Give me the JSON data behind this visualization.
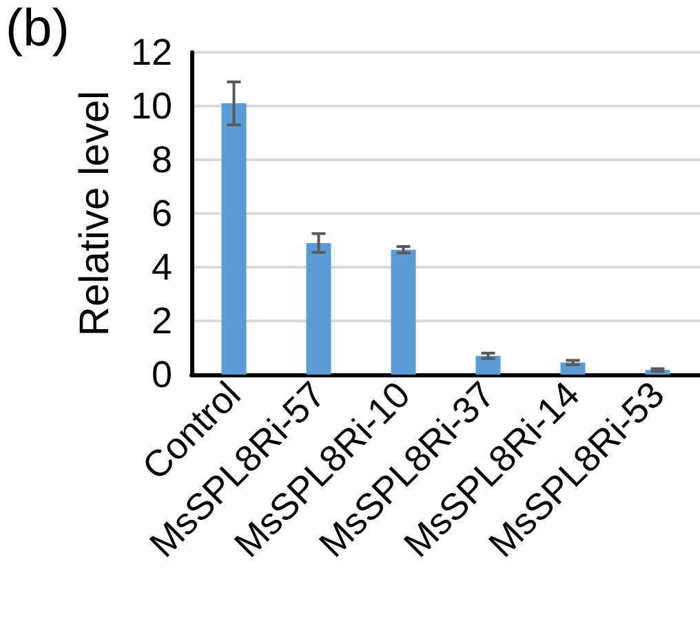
{
  "chart_data": {
    "type": "bar",
    "ylabel": "Relative level",
    "annotations": [
      "(b)"
    ],
    "categories": [
      "Control",
      "MsSPL8Ri-57",
      "MsSPL8Ri-10",
      "MsSPL8Ri-37",
      "MsSPL8Ri-14",
      "MsSPL8Ri-53"
    ],
    "values": [
      10.1,
      4.9,
      4.65,
      0.7,
      0.45,
      0.17
    ],
    "errors": [
      0.8,
      0.35,
      0.12,
      0.1,
      0.08,
      0.05
    ],
    "color": "#5b9bd5",
    "ylim": [
      0,
      12
    ],
    "yticks": [
      0,
      2,
      4,
      6,
      8,
      10,
      12
    ],
    "grid": "y"
  }
}
